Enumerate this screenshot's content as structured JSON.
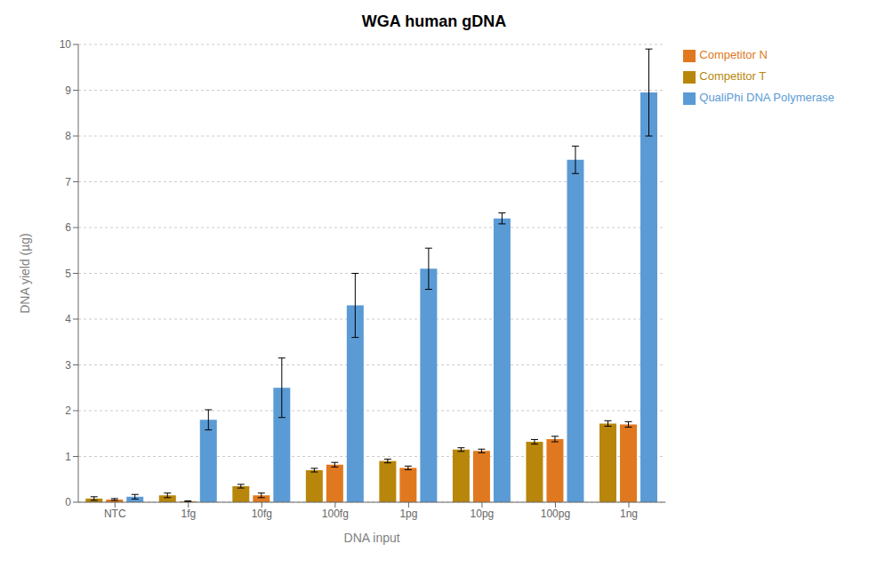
{
  "chart_data": {
    "type": "bar",
    "title": "WGA human gDNA",
    "xlabel": "DNA input",
    "ylabel": "DNA yield (µg)",
    "categories": [
      "NTC",
      "1fg",
      "10fg",
      "100fg",
      "1pg",
      "10pg",
      "100pg",
      "1ng"
    ],
    "series": [
      {
        "name": "Competitor T",
        "color": "#B8860B",
        "values": [
          0.08,
          0.15,
          0.35,
          0.7,
          0.9,
          1.15,
          1.32,
          1.72
        ],
        "errors": [
          0.04,
          0.05,
          0.04,
          0.04,
          0.04,
          0.04,
          0.05,
          0.06
        ]
      },
      {
        "name": "Competitor N",
        "color": "#E07820",
        "values": [
          0.06,
          0.02,
          0.15,
          0.82,
          0.75,
          1.12,
          1.38,
          1.7
        ],
        "errors": [
          0.02,
          0.01,
          0.05,
          0.05,
          0.04,
          0.04,
          0.06,
          0.06
        ]
      },
      {
        "name": "QualiPhi DNA Polymerase",
        "color": "#5B9BD5",
        "values": [
          0.12,
          1.8,
          2.5,
          4.3,
          5.1,
          6.2,
          7.48,
          8.95
        ],
        "errors": [
          0.05,
          0.22,
          0.65,
          0.7,
          0.45,
          0.12,
          0.3,
          0.95
        ]
      }
    ],
    "ylim": [
      0,
      10
    ],
    "yticks": [
      0,
      1,
      2,
      3,
      4,
      5,
      6,
      7,
      8,
      9,
      10
    ],
    "grid": true,
    "legend": "right"
  }
}
